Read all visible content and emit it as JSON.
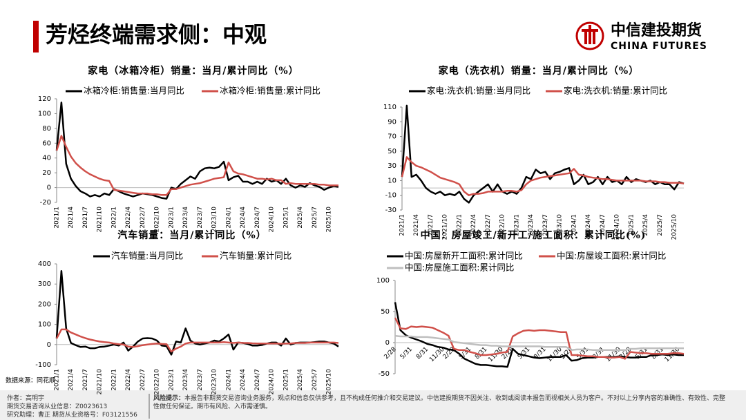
{
  "header": {
    "title": "芳烃终端需求侧：中观",
    "logo_cn": "中信建投期货",
    "logo_en": "CHINA FUTURES"
  },
  "chart_data": [
    {
      "type": "line",
      "title": "家电（冰箱冷柜）销量：当月/累计同比（%）",
      "categories": [
        "2021/1",
        null,
        null,
        "2021/4",
        null,
        null,
        "2021/7",
        null,
        null,
        "2021/10",
        null,
        null,
        "2022/1",
        null,
        null,
        "2022/4",
        null,
        null,
        "2022/7",
        null,
        null,
        "2022/10",
        null,
        null,
        "2023/1",
        null,
        null,
        "2023/4",
        null,
        null,
        "2023/7",
        null,
        null,
        "2023/10",
        null,
        null,
        "2024/1",
        null,
        null,
        "2024/4",
        null,
        null,
        "2024/7",
        null,
        null,
        "2024/10",
        null,
        null,
        "2025/1",
        null,
        null,
        "2025/4",
        null,
        null,
        "2025/7",
        null,
        null,
        "2025/10",
        null,
        null
      ],
      "series": [
        {
          "name": "冰箱冷柜:销售量:当月同比",
          "color": "#000000",
          "values": [
            50,
            115,
            32,
            12,
            2,
            -5,
            -8,
            -12,
            -10,
            -12,
            -8,
            -10,
            -2,
            -5,
            -8,
            -10,
            -12,
            -10,
            -8,
            -9,
            -10,
            -12,
            -14,
            -15,
            0,
            -2,
            5,
            10,
            15,
            12,
            22,
            26,
            27,
            26,
            28,
            35,
            10,
            14,
            16,
            8,
            8,
            5,
            8,
            5,
            12,
            8,
            10,
            5,
            12,
            3,
            0,
            3,
            1,
            6,
            3,
            1,
            -3,
            0,
            2,
            1
          ]
        },
        {
          "name": "冰箱冷柜:销售量:累计同比",
          "color": "#d0504a",
          "values": [
            50,
            70,
            55,
            42,
            33,
            27,
            22,
            18,
            15,
            12,
            10,
            9,
            -3,
            -4,
            -5,
            -6,
            -7,
            -8,
            -8,
            -8,
            -9,
            -9,
            -10,
            -10,
            -2,
            -2,
            0,
            2,
            4,
            5,
            6,
            8,
            10,
            12,
            13,
            14,
            34,
            22,
            19,
            18,
            16,
            14,
            12,
            12,
            11,
            12,
            10,
            10,
            5,
            6,
            5,
            5,
            5,
            5,
            5,
            4,
            4,
            3,
            3,
            3
          ]
        }
      ],
      "ylim": [
        -20,
        120
      ],
      "yticks": [
        -20,
        0,
        20,
        40,
        60,
        80,
        100,
        120
      ]
    },
    {
      "type": "line",
      "title": "家电（洗衣机）销量：当月/累计同比（%）",
      "categories": [
        "2021/1",
        null,
        null,
        "2021/4",
        null,
        null,
        "2021/7",
        null,
        null,
        "2021/10",
        null,
        null,
        "2022/1",
        null,
        null,
        "2022/4",
        null,
        null,
        "2022/7",
        null,
        null,
        "2022/10",
        null,
        null,
        "2023/1",
        null,
        null,
        "2023/4",
        null,
        null,
        "2023/7",
        null,
        null,
        "2023/10",
        null,
        null,
        "2024/1",
        null,
        null,
        "2024/4",
        null,
        null,
        "2024/7",
        null,
        null,
        "2024/10",
        null,
        null,
        "2025/1",
        null,
        null,
        "2025/4",
        null,
        null,
        "2025/7",
        null,
        null,
        "2025/10",
        null,
        null
      ],
      "series": [
        {
          "name": "家电:洗衣机:销量:当月同比",
          "color": "#000000",
          "values": [
            15,
            112,
            15,
            18,
            10,
            0,
            -5,
            -8,
            -5,
            -10,
            -8,
            -10,
            -5,
            -15,
            -20,
            -10,
            -5,
            0,
            5,
            -5,
            5,
            -5,
            -8,
            -5,
            -8,
            0,
            15,
            12,
            25,
            20,
            22,
            12,
            20,
            22,
            25,
            27,
            5,
            10,
            18,
            5,
            8,
            15,
            5,
            15,
            8,
            10,
            5,
            15,
            8,
            12,
            10,
            8,
            10,
            5,
            8,
            5,
            5,
            -2,
            8,
            6
          ]
        },
        {
          "name": "家电:洗衣机:销量:累计同比",
          "color": "#d0504a",
          "values": [
            15,
            42,
            35,
            30,
            28,
            25,
            22,
            18,
            14,
            12,
            10,
            8,
            5,
            -5,
            -10,
            -8,
            -8,
            -7,
            -5,
            -5,
            -5,
            -5,
            -4,
            -4,
            -5,
            -3,
            5,
            10,
            12,
            14,
            15,
            16,
            17,
            18,
            19,
            20,
            26,
            18,
            17,
            15,
            14,
            13,
            12,
            12,
            11,
            10,
            10,
            10,
            10,
            10,
            10,
            9,
            9,
            9,
            8,
            8,
            7,
            7,
            7,
            6
          ]
        }
      ],
      "ylim": [
        -30,
        110
      ],
      "yticks": [
        -30,
        -10,
        10,
        30,
        50,
        70,
        90,
        110
      ]
    },
    {
      "type": "line",
      "title": "汽车销量：当月/累计同比（%）",
      "categories": [
        "2021/1",
        null,
        null,
        "2021/4",
        null,
        null,
        "2021/7",
        null,
        null,
        "2021/10",
        null,
        null,
        "2022/1",
        null,
        null,
        "2022/4",
        null,
        null,
        "2022/7",
        null,
        null,
        "2022/10",
        null,
        null,
        "2023/1",
        null,
        null,
        "2023/4",
        null,
        null,
        "2023/7",
        null,
        null,
        "2023/10",
        null,
        null,
        "2024/1",
        null,
        null,
        "2024/4",
        null,
        null,
        "2024/7",
        null,
        null,
        "2024/10",
        null,
        null,
        "2025/1",
        null,
        null,
        "2025/4",
        null,
        null,
        "2025/7",
        null,
        null,
        "2025/10",
        null,
        null
      ],
      "series": [
        {
          "name": "汽车销量:当月同比",
          "color": "#000000",
          "values": [
            30,
            365,
            80,
            8,
            -3,
            -12,
            -10,
            -18,
            -18,
            -12,
            -10,
            -5,
            0,
            -5,
            10,
            -30,
            -10,
            15,
            30,
            32,
            30,
            20,
            -5,
            -8,
            -50,
            15,
            10,
            80,
            20,
            5,
            0,
            5,
            10,
            20,
            15,
            30,
            50,
            -25,
            10,
            8,
            3,
            -5,
            -5,
            -2,
            5,
            10,
            10,
            -5,
            30,
            0,
            8,
            10,
            10,
            10,
            12,
            15,
            15,
            10,
            5,
            -10
          ]
        },
        {
          "name": "汽车销量:累计同比",
          "color": "#d0504a",
          "values": [
            30,
            75,
            75,
            60,
            50,
            40,
            32,
            25,
            20,
            15,
            12,
            10,
            5,
            2,
            0,
            -10,
            -12,
            -8,
            -3,
            0,
            3,
            5,
            3,
            2,
            -35,
            -20,
            -10,
            5,
            10,
            10,
            10,
            10,
            10,
            10,
            10,
            12,
            10,
            8,
            10,
            8,
            8,
            6,
            5,
            5,
            5,
            5,
            5,
            4,
            5,
            5,
            8,
            8,
            8,
            10,
            10,
            10,
            10,
            10,
            10,
            8
          ]
        }
      ],
      "ylim": [
        -100,
        400
      ],
      "yticks": [
        -100,
        0,
        100,
        200,
        300,
        400
      ]
    },
    {
      "type": "line",
      "title": "中国：房屋竣工/新开工/施工面积：累计同比(%)",
      "categories": [
        "2/28",
        null,
        null,
        "5/31",
        null,
        null,
        "8/31",
        null,
        null,
        "11/30",
        null,
        "2/28",
        null,
        null,
        "5/31",
        null,
        null,
        "8/31",
        null,
        null,
        "11/30",
        null,
        "2/28",
        null,
        null,
        "5/31",
        null,
        null,
        "8/31",
        null,
        null,
        "11/30",
        null,
        "2/28",
        null,
        null,
        "5/31",
        null,
        null,
        "8/31",
        null,
        null,
        "11/30",
        null,
        "2/28",
        null,
        null,
        "5/31",
        null,
        null,
        "8/31",
        null,
        null,
        "11/30",
        null
      ],
      "series": [
        {
          "name": "中国:房屋新开工面积:累计同比",
          "color": "#000000",
          "values": [
            65,
            20,
            12,
            8,
            5,
            2,
            -2,
            -4,
            -7,
            -8,
            -11,
            -12,
            -18,
            -26,
            -30,
            -34,
            -36,
            -36,
            -37,
            -38,
            -38,
            -39,
            -10,
            -18,
            -20,
            -22,
            -24,
            -25,
            -24,
            -23,
            -23,
            -23,
            -20,
            -29,
            -28,
            -25,
            -24,
            -24,
            -23,
            -23,
            -23,
            -23,
            -22,
            -23,
            -24,
            -24,
            -23,
            -23,
            -20,
            -20,
            -19,
            -20,
            -19,
            -20,
            -20
          ]
        },
        {
          "name": "中国:房屋竣工面积:累计同比",
          "color": "#d0504a",
          "values": [
            40,
            23,
            22,
            26,
            25,
            26,
            25,
            24,
            20,
            16,
            11,
            -10,
            -12,
            -12,
            -15,
            -17,
            -20,
            -20,
            -19,
            -18,
            -16,
            -15,
            10,
            15,
            19,
            20,
            19,
            20,
            20,
            19,
            18,
            17,
            17,
            -20,
            -20,
            -21,
            -22,
            -22,
            -23,
            -23,
            -24,
            -24,
            -23,
            -26,
            -15,
            -16,
            -17,
            -17,
            -18,
            -18,
            -18,
            -18,
            -17,
            -17,
            -18
          ]
        },
        {
          "name": "中国:房屋施工面积:累计同比",
          "color": "#bfbfbf",
          "values": [
            11,
            10,
            10,
            10,
            9,
            9,
            9,
            8,
            7,
            6,
            5,
            1,
            0,
            -1,
            -2,
            -3,
            -4,
            -4,
            -5,
            -5,
            -6,
            -6,
            -6,
            -6,
            -6,
            -6,
            -6,
            -6,
            -7,
            -7,
            -7,
            -7,
            -7,
            -12,
            -11,
            -11,
            -11,
            -12,
            -12,
            -12,
            -12,
            -12,
            -12,
            -12,
            -10,
            -10,
            -9,
            -9,
            -9,
            -9,
            -9,
            -9,
            -9,
            -9,
            -9
          ]
        }
      ],
      "ylim": [
        -50,
        100
      ],
      "yticks": [
        -50,
        0,
        50,
        100
      ]
    }
  ],
  "footer": {
    "source": "数据来源：同花顺",
    "author": "作者：高明宇",
    "license": "期货交易咨询从业信息：Z0023613",
    "assistant": "研究助理：曹正  期货从业资格号：F03121556",
    "risk_label": "风险提示：",
    "risk_text": "本报告非期货交易咨询业务服务，观点和信息仅供参考，且不构成任何推介和交易建议。中信建投期货不因关注、收到或阅读本报告而视相关人员为客户。不对以上分享内容的准确性、有效性、完整性做任何保证。期市有风险、入市需谨慎。"
  }
}
